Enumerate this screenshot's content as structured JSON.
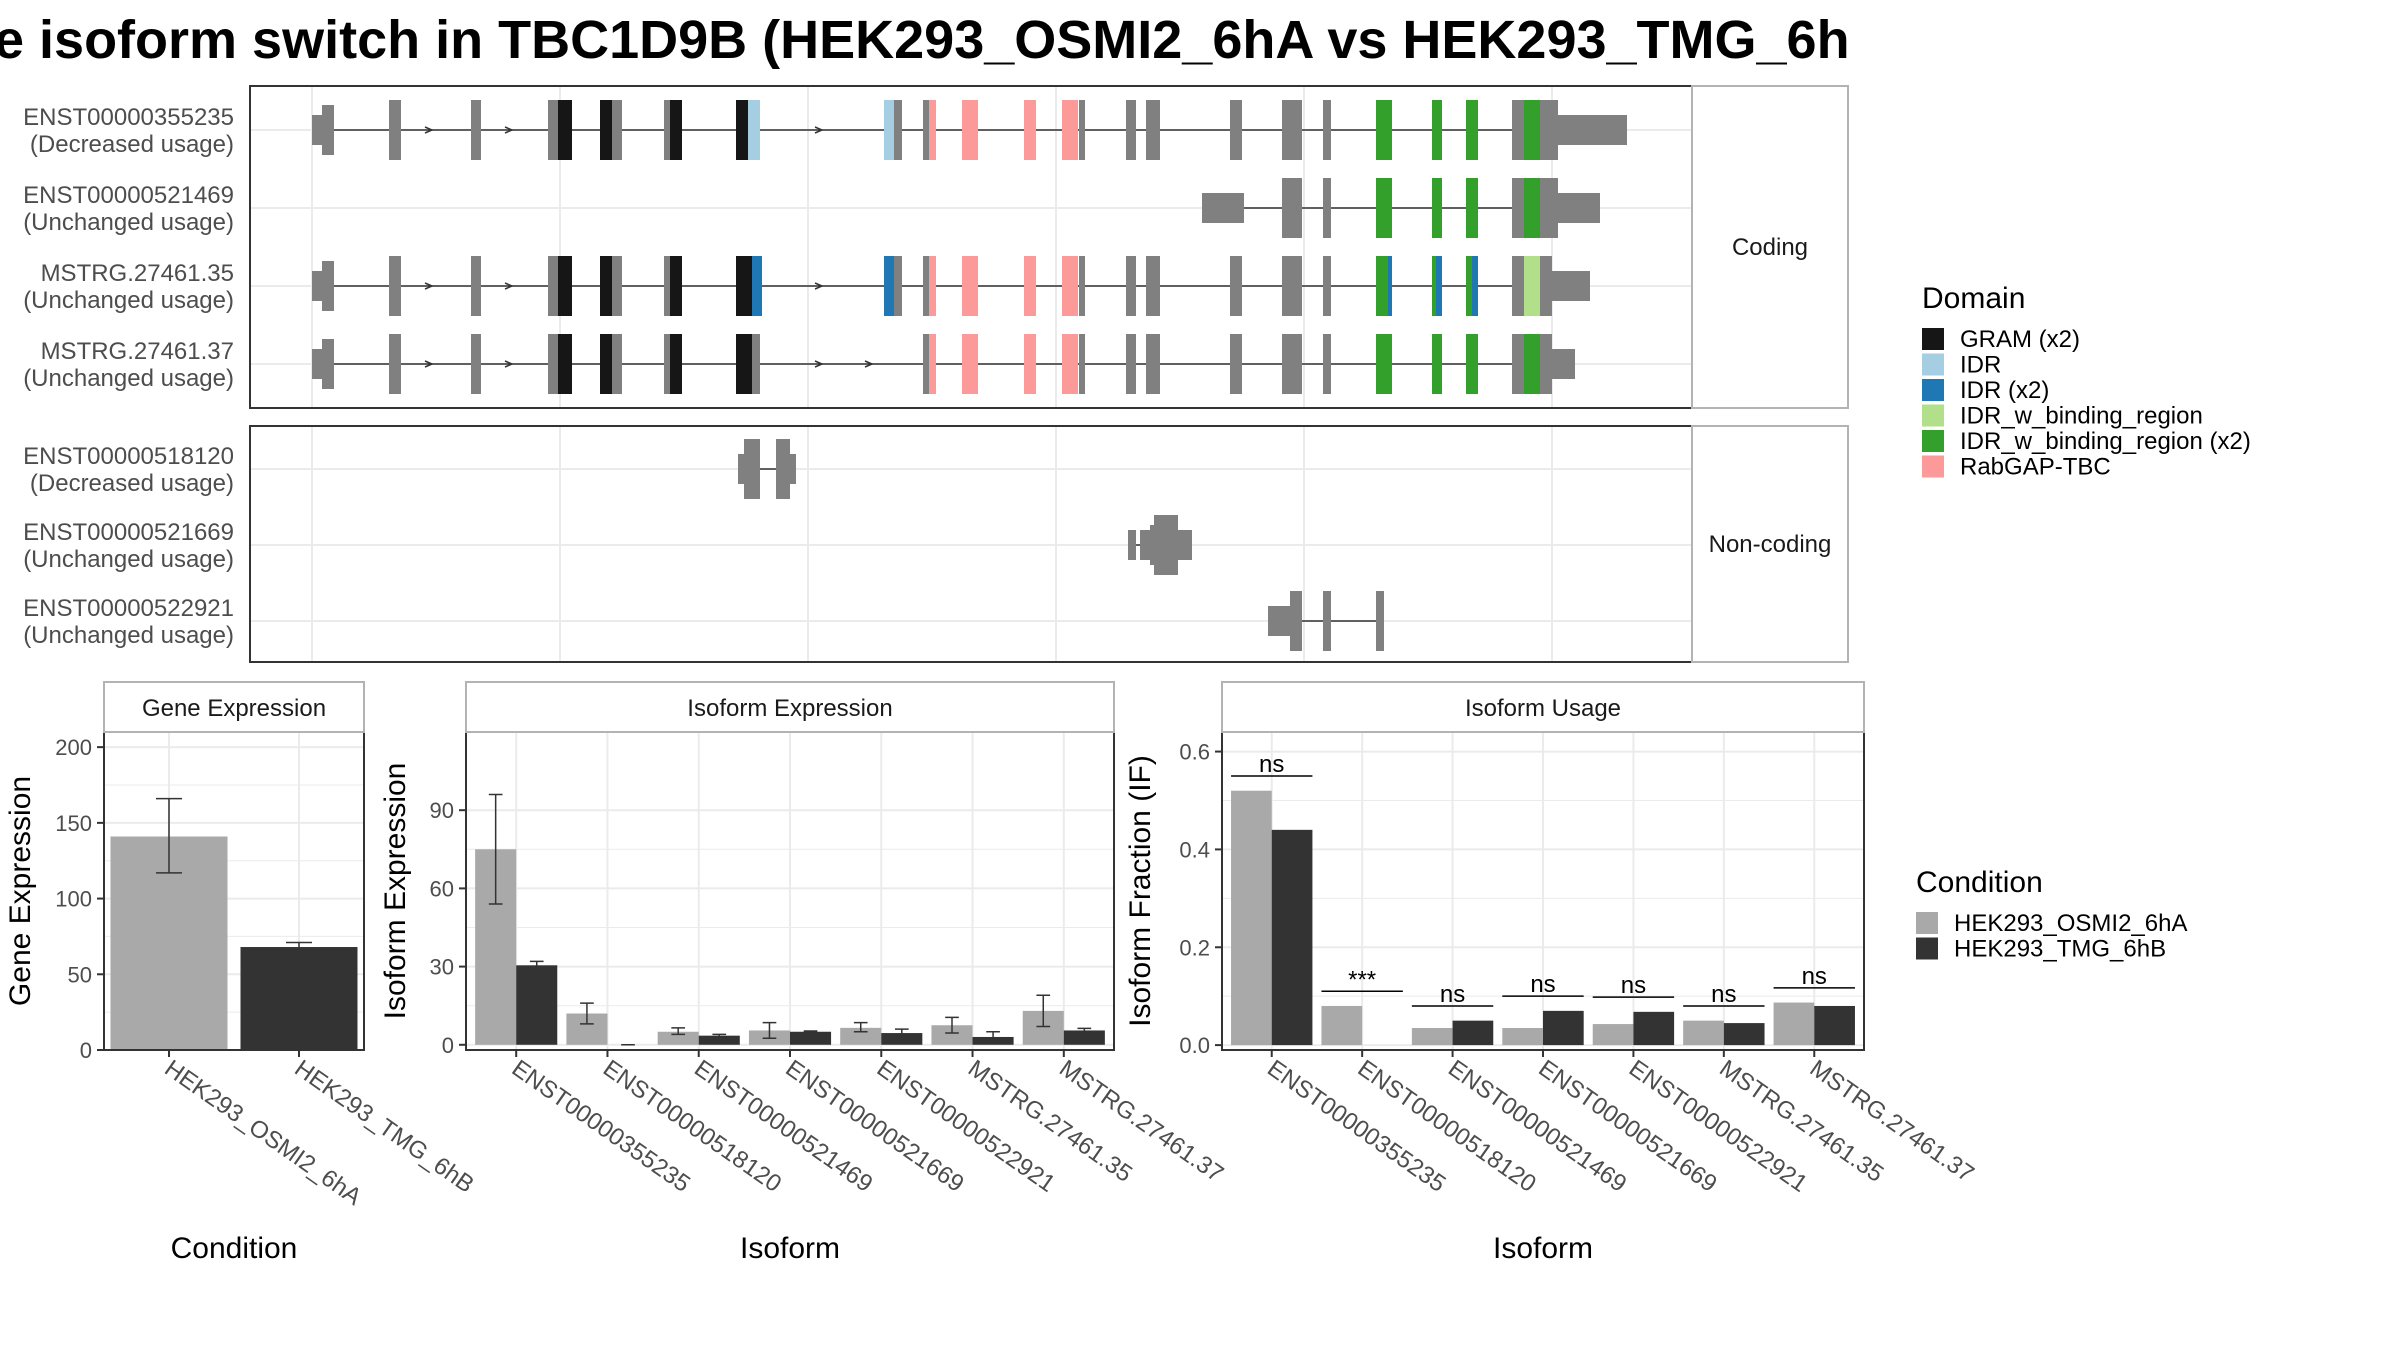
{
  "title": "e isoform switch in TBC1D9B (HEK293_OSMI2_6hA vs HEK293_TMG_6h",
  "colors": {
    "exon": "#808080",
    "GRAM": "#161616",
    "IDR": "#a6cee3",
    "IDR_x2": "#1f78b4",
    "IDR_w_binding_region": "#b2df8a",
    "IDR_w_binding_region_x2": "#33a02c",
    "RabGAP_TBC": "#fb9a99",
    "cond_a": "#a9a9a9",
    "cond_b": "#333333",
    "grid": "#ebebeb",
    "panel_border": "#333333",
    "strip_border": "#b3b3b3"
  },
  "structure": {
    "facets": [
      "Coding",
      "Non-coding"
    ],
    "coding": [
      {
        "name": "ENST00000355235",
        "usage": "(Decreased usage)",
        "id": "t355235"
      },
      {
        "name": "ENST00000521469",
        "usage": "(Unchanged usage)",
        "id": "t521469"
      },
      {
        "name": "MSTRG.27461.35",
        "usage": "(Unchanged usage)",
        "id": "m35"
      },
      {
        "name": "MSTRG.27461.37",
        "usage": "(Unchanged usage)",
        "id": "m37"
      }
    ],
    "noncoding": [
      {
        "name": "ENST00000518120",
        "usage": "(Decreased usage)",
        "id": "t518120"
      },
      {
        "name": "ENST00000521669",
        "usage": "(Unchanged usage)",
        "id": "t521669"
      },
      {
        "name": "ENST00000522921",
        "usage": "(Unchanged usage)",
        "id": "t522921"
      }
    ]
  },
  "domain_legend": {
    "title": "Domain",
    "items": [
      {
        "label": "GRAM (x2)",
        "color_key": "GRAM"
      },
      {
        "label": "IDR",
        "color_key": "IDR"
      },
      {
        "label": "IDR (x2)",
        "color_key": "IDR_x2"
      },
      {
        "label": "IDR_w_binding_region",
        "color_key": "IDR_w_binding_region"
      },
      {
        "label": "IDR_w_binding_region (x2)",
        "color_key": "IDR_w_binding_region_x2"
      },
      {
        "label": "RabGAP-TBC",
        "color_key": "RabGAP_TBC"
      }
    ]
  },
  "condition_legend": {
    "title": "Condition",
    "items": [
      {
        "label": "HEK293_OSMI2_6hA",
        "color_key": "cond_a"
      },
      {
        "label": "HEK293_TMG_6hB",
        "color_key": "cond_b"
      }
    ]
  },
  "chart_data": [
    {
      "type": "bar",
      "title": "Gene Expression",
      "xlabel": "Condition",
      "ylabel": "Gene Expression",
      "ylim": [
        0,
        210
      ],
      "yticks": [
        0,
        50,
        100,
        150,
        200
      ],
      "categories": [
        "HEK293_OSMI2_6hA",
        "HEK293_TMG_6hB"
      ],
      "values": [
        141,
        68
      ],
      "errors": [
        [
          117,
          166
        ],
        [
          66,
          71
        ]
      ]
    },
    {
      "type": "bar",
      "title": "Isoform Expression",
      "xlabel": "Isoform",
      "ylabel": "Isoform Expression",
      "ylim": [
        -2,
        120
      ],
      "yticks": [
        0,
        30,
        60,
        90
      ],
      "categories": [
        "ENST00000355235",
        "ENST00000518120",
        "ENST00000521469",
        "ENST00000521669",
        "ENST00000522921",
        "MSTRG.27461.35",
        "MSTRG.27461.37"
      ],
      "series": [
        {
          "name": "HEK293_OSMI2_6hA",
          "values": [
            75,
            12,
            5,
            5.5,
            6.5,
            7.5,
            13
          ],
          "errors": [
            [
              54,
              96
            ],
            [
              8,
              16
            ],
            [
              4,
              6.5
            ],
            [
              2.5,
              8.5
            ],
            [
              5,
              8.5
            ],
            [
              4.5,
              10.5
            ],
            [
              7,
              19
            ]
          ]
        },
        {
          "name": "HEK293_TMG_6hB",
          "values": [
            30.5,
            0,
            3.5,
            5,
            4.5,
            3,
            5.5
          ],
          "errors": [
            [
              29,
              32
            ],
            [
              0,
              0
            ],
            [
              3,
              4
            ],
            [
              4.7,
              5.3
            ],
            [
              3,
              6
            ],
            [
              1,
              5
            ],
            [
              4.7,
              6.3
            ]
          ]
        }
      ]
    },
    {
      "type": "bar",
      "title": "Isoform Usage",
      "xlabel": "Isoform",
      "ylabel": "Isoform Fraction (IF)",
      "ylim": [
        -0.01,
        0.64
      ],
      "yticks": [
        "0.0",
        "0.2",
        "0.4",
        "0.6"
      ],
      "categories": [
        "ENST00000355235",
        "ENST00000518120",
        "ENST00000521469",
        "ENST00000521669",
        "ENST00000522921",
        "MSTRG.27461.35",
        "MSTRG.27461.37"
      ],
      "series": [
        {
          "name": "HEK293_OSMI2_6hA",
          "values": [
            0.52,
            0.08,
            0.035,
            0.035,
            0.043,
            0.05,
            0.087
          ]
        },
        {
          "name": "HEK293_TMG_6hB",
          "values": [
            0.44,
            0.0,
            0.05,
            0.07,
            0.068,
            0.045,
            0.08
          ]
        }
      ],
      "significance": [
        "ns",
        "***",
        "ns",
        "ns",
        "ns",
        "ns",
        "ns"
      ]
    }
  ]
}
